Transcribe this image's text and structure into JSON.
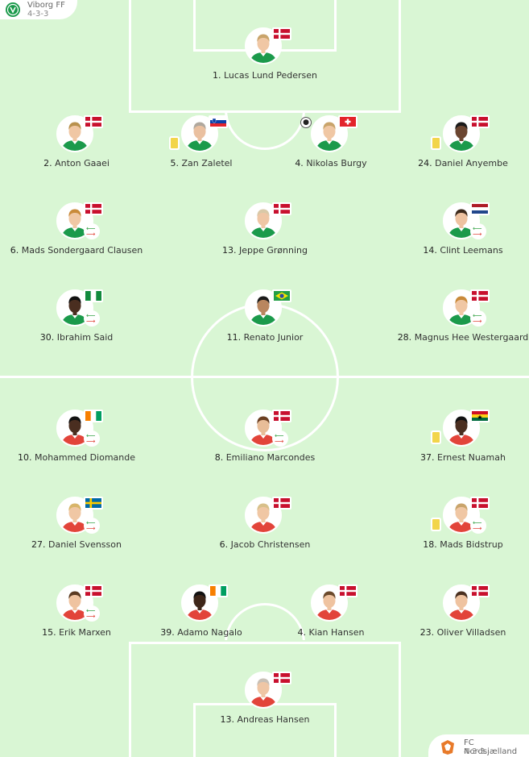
{
  "home": {
    "name": "Viborg FF",
    "formation": "4-3-3",
    "kit_color": "#1b9a4b",
    "players": [
      {
        "num": "1.",
        "name": "Lucas Lund Pedersen",
        "flag": "DK",
        "skin": "#f0c7a4",
        "hair": "#c9a46b",
        "kit": "#1b9a4b"
      },
      {
        "num": "2.",
        "name": "Anton Gaaei",
        "flag": "DK",
        "skin": "#f0c7a4",
        "hair": "#b8914e",
        "kit": "#1b9a4b"
      },
      {
        "num": "5.",
        "name": "Zan Zaletel",
        "flag": "SI",
        "skin": "#eac0a0",
        "hair": "#b0a89e",
        "kit": "#1b9a4b",
        "card": true
      },
      {
        "num": "4.",
        "name": "Nikolas Burgy",
        "flag": "CH",
        "skin": "#f0c7a4",
        "hair": "#c9a46b",
        "kit": "#1b9a4b",
        "goal": true
      },
      {
        "num": "24.",
        "name": "Daniel Anyembe",
        "flag": "DK",
        "skin": "#6b4530",
        "hair": "#1a1a1a",
        "kit": "#1b9a4b",
        "card": true
      },
      {
        "num": "6.",
        "name": "Mads Sondergaard Clausen",
        "flag": "DK",
        "skin": "#f0c7a4",
        "hair": "#c98a3a",
        "kit": "#1b9a4b",
        "sub": true
      },
      {
        "num": "13.",
        "name": "Jeppe Grønning",
        "flag": "DK",
        "skin": "#efc6a5",
        "hair": "#d9c9a8",
        "kit": "#1b9a4b"
      },
      {
        "num": "14.",
        "name": "Clint Leemans",
        "flag": "NL",
        "skin": "#eec2a0",
        "hair": "#3d2a1c",
        "kit": "#1b9a4b",
        "sub": true
      },
      {
        "num": "30.",
        "name": "Ibrahim Said",
        "flag": "NG",
        "skin": "#4a2e20",
        "hair": "#111111",
        "kit": "#1b9a4b",
        "sub": true
      },
      {
        "num": "11.",
        "name": "Renato Junior",
        "flag": "BR",
        "skin": "#b9865f",
        "hair": "#1a1a1a",
        "kit": "#1b9a4b"
      },
      {
        "num": "28.",
        "name": "Magnus Hee Westergaard",
        "flag": "DK",
        "skin": "#f0c7a4",
        "hair": "#c98a3a",
        "kit": "#1b9a4b",
        "sub": true
      }
    ]
  },
  "away": {
    "name": "FC Nordsjælland",
    "formation": "4-3-3",
    "kit_color": "#e2443a",
    "players": [
      {
        "num": "10.",
        "name": "Mohammed Diomande",
        "flag": "CI",
        "skin": "#4a2e20",
        "hair": "#111111",
        "kit": "#e2443a",
        "sub": true
      },
      {
        "num": "8.",
        "name": "Emiliano Marcondes",
        "flag": "DK",
        "skin": "#e8bd98",
        "hair": "#6b3f22",
        "kit": "#e2443a",
        "sub": true
      },
      {
        "num": "37.",
        "name": "Ernest Nuamah",
        "flag": "GH",
        "skin": "#4a2e20",
        "hair": "#111111",
        "kit": "#e2443a",
        "card": true
      },
      {
        "num": "27.",
        "name": "Daniel Svensson",
        "flag": "SE",
        "skin": "#f0c7a4",
        "hair": "#d8b56a",
        "kit": "#e2443a",
        "sub": true
      },
      {
        "num": "6.",
        "name": "Jacob Christensen",
        "flag": "DK",
        "skin": "#f0c7a4",
        "hair": "#d8c08a",
        "kit": "#e2443a"
      },
      {
        "num": "18.",
        "name": "Mads Bidstrup",
        "flag": "DK",
        "skin": "#f0c7a4",
        "hair": "#c9a46b",
        "kit": "#e2443a",
        "card": true,
        "sub": true
      },
      {
        "num": "15.",
        "name": "Erik Marxen",
        "flag": "DK",
        "skin": "#efc3a0",
        "hair": "#5a3a22",
        "kit": "#e2443a",
        "sub": true
      },
      {
        "num": "39.",
        "name": "Adamo Nagalo",
        "flag": "CI",
        "skin": "#3e2619",
        "hair": "#111111",
        "kit": "#e2443a"
      },
      {
        "num": "4.",
        "name": "Kian Hansen",
        "flag": "DK",
        "skin": "#efc3a0",
        "hair": "#6b4a2c",
        "kit": "#e2443a"
      },
      {
        "num": "23.",
        "name": "Oliver Villadsen",
        "flag": "DK",
        "skin": "#efc3a0",
        "hair": "#4a3020",
        "kit": "#e2443a"
      },
      {
        "num": "13.",
        "name": "Andreas Hansen",
        "flag": "DK",
        "skin": "#efc6a5",
        "hair": "#c8c0b6",
        "kit": "#e2443a"
      }
    ]
  },
  "colors": {
    "pitch": "#d9f6d4",
    "lines": "#ffffff",
    "yellow_card": "#f2d54a",
    "sub_in": "#3aa54a",
    "sub_out": "#e0453a"
  },
  "icons": {
    "card": "yellow-card-icon",
    "substitution": "substitution-arrows-icon",
    "goal": "football-icon"
  }
}
